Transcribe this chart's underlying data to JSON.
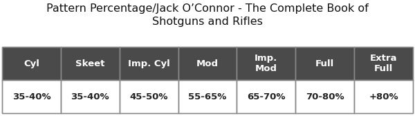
{
  "title": "Pattern Percentage/Jack O’Connor - The Complete Book of\nShotguns and Rifles",
  "title_fontsize": 11.5,
  "headers": [
    "Cyl",
    "Skeet",
    "Imp. Cyl",
    "Mod",
    "Imp.\nMod",
    "Full",
    "Extra\nFull"
  ],
  "values": [
    "35-40%",
    "35-40%",
    "45-50%",
    "55-65%",
    "65-70%",
    "70-80%",
    "+80%"
  ],
  "header_bg": "#4a4a4a",
  "header_fg": "#ffffff",
  "value_bg": "#ffffff",
  "value_fg": "#222222",
  "border_color": "#888888",
  "background_color": "#ffffff",
  "header_fontsize": 9.5,
  "value_fontsize": 9.5
}
